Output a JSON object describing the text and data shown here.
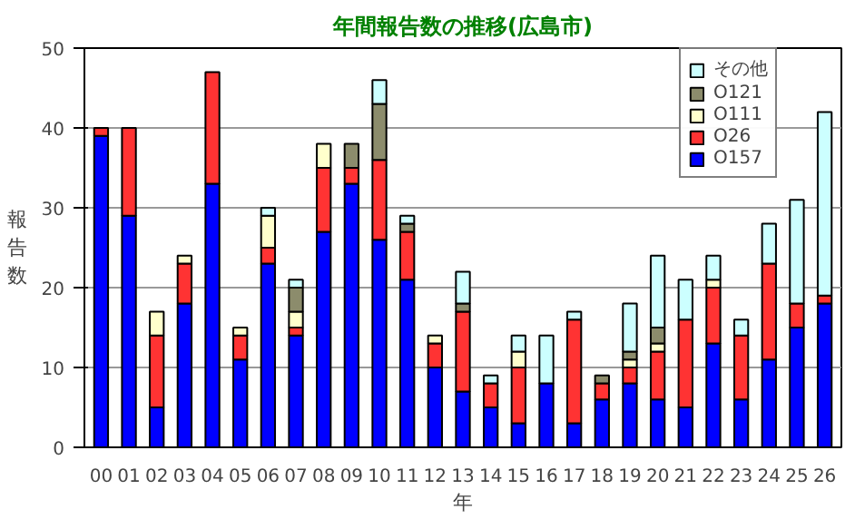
{
  "chart_data": {
    "type": "bar",
    "title": "年間報告数の推移(広島市)",
    "xlabel": "年",
    "ylabel": "報告数",
    "stacked": true,
    "categories": [
      "00",
      "01",
      "02",
      "03",
      "04",
      "05",
      "06",
      "07",
      "08",
      "09",
      "10",
      "11",
      "12",
      "13",
      "14",
      "15",
      "16",
      "17",
      "18",
      "19",
      "20",
      "21",
      "22",
      "23",
      "24",
      "25",
      "26"
    ],
    "series": [
      {
        "name": "O157",
        "color": "#0000ff",
        "values": [
          39,
          29,
          5,
          18,
          33,
          11,
          23,
          14,
          27,
          33,
          26,
          21,
          10,
          7,
          5,
          3,
          8,
          3,
          6,
          8,
          6,
          5,
          13,
          6,
          11,
          15,
          18
        ]
      },
      {
        "name": "O26",
        "color": "#ff3333",
        "values": [
          1,
          11,
          9,
          5,
          14,
          3,
          2,
          1,
          8,
          2,
          10,
          6,
          3,
          10,
          3,
          7,
          0,
          13,
          2,
          2,
          6,
          11,
          7,
          8,
          12,
          3,
          1
        ]
      },
      {
        "name": "O111",
        "color": "#ffffcc",
        "values": [
          0,
          0,
          3,
          1,
          0,
          1,
          4,
          2,
          3,
          0,
          0,
          0,
          1,
          0,
          0,
          2,
          0,
          0,
          0,
          1,
          1,
          0,
          1,
          0,
          0,
          0,
          0
        ]
      },
      {
        "name": "O121",
        "color": "#8c8c6c",
        "values": [
          0,
          0,
          0,
          0,
          0,
          0,
          0,
          3,
          0,
          3,
          7,
          1,
          0,
          1,
          0,
          0,
          0,
          0,
          1,
          1,
          2,
          0,
          0,
          0,
          0,
          0,
          0
        ]
      },
      {
        "name": "その他",
        "color": "#ccffff",
        "values": [
          0,
          0,
          0,
          0,
          0,
          0,
          1,
          1,
          0,
          0,
          3,
          1,
          0,
          4,
          1,
          2,
          6,
          1,
          0,
          6,
          9,
          5,
          3,
          2,
          5,
          13,
          23
        ]
      }
    ],
    "ylim": [
      0,
      50
    ],
    "yticks": [
      0,
      10,
      20,
      30,
      40,
      50
    ],
    "grid": "y",
    "legend": "top right"
  }
}
